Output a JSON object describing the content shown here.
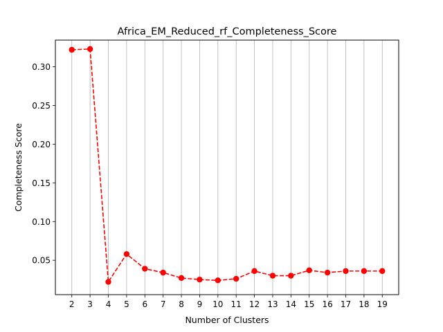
{
  "chart_data": {
    "type": "line",
    "title": "Africa_EM_Reduced_rf_Completeness_Score",
    "xlabel": "Number of Clusters",
    "ylabel": "Completeness Score",
    "x": [
      2,
      3,
      4,
      5,
      6,
      7,
      8,
      9,
      10,
      11,
      12,
      13,
      14,
      15,
      16,
      17,
      18,
      19
    ],
    "x_tick_labels": [
      "2",
      "3",
      "4",
      "5",
      "6",
      "7",
      "8",
      "9",
      "10",
      "11",
      "12",
      "13",
      "14",
      "15",
      "16",
      "17",
      "18",
      "19"
    ],
    "xlim": [
      1.1,
      19.9
    ],
    "ylim": [
      0.0055,
      0.3345
    ],
    "y_ticks": [
      0.05,
      0.1,
      0.15,
      0.2,
      0.25,
      0.3
    ],
    "y_tick_labels": [
      "0.05",
      "0.10",
      "0.15",
      "0.20",
      "0.25",
      "0.30"
    ],
    "grid": "x",
    "series": [
      {
        "color": "#ff0000",
        "line_style": "dashed",
        "marker": "circle",
        "values": [
          0.322,
          0.323,
          0.022,
          0.058,
          0.039,
          0.034,
          0.027,
          0.025,
          0.024,
          0.026,
          0.036,
          0.03,
          0.03,
          0.037,
          0.034,
          0.036,
          0.036,
          0.036
        ]
      }
    ]
  }
}
